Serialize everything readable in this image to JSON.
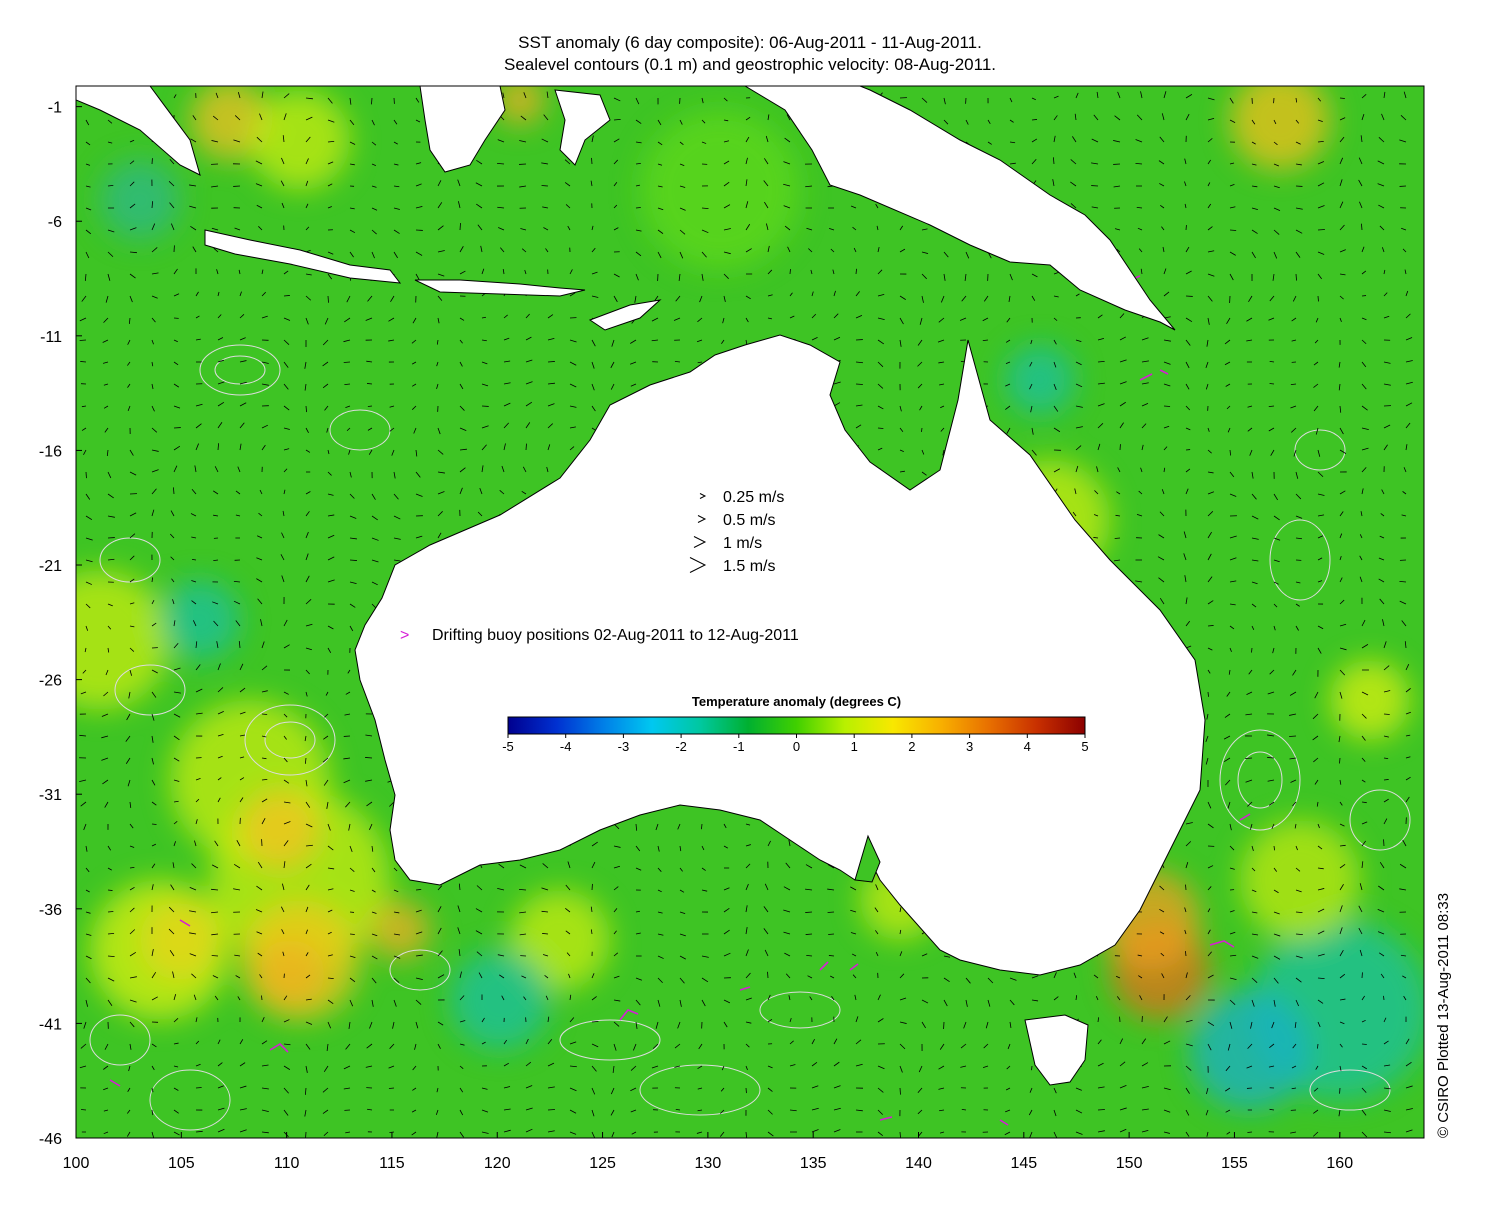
{
  "title": {
    "line1": "SST anomaly (6 day composite): 06-Aug-2011 - 11-Aug-2011.",
    "line2": "Sealevel contours (0.1 m) and geostrophic velocity: 08-Aug-2011."
  },
  "axes": {
    "x_ticks": [
      "100",
      "105",
      "110",
      "115",
      "120",
      "125",
      "130",
      "135",
      "140",
      "145",
      "150",
      "155",
      "160"
    ],
    "y_ticks": [
      "-1",
      "-6",
      "-11",
      "-16",
      "-21",
      "-26",
      "-31",
      "-36",
      "-41",
      "-46"
    ],
    "lon_range": [
      100,
      164
    ],
    "lat_range": [
      -46,
      -0.1
    ]
  },
  "velocity_legend": [
    {
      "label": "0.25 m/s",
      "speed": 0.25
    },
    {
      "label": "0.5 m/s",
      "speed": 0.5
    },
    {
      "label": "1 m/s",
      "speed": 1
    },
    {
      "label": "1.5 m/s",
      "speed": 1.5
    }
  ],
  "buoy_legend": {
    "symbol": ">",
    "label": "Drifting buoy positions 02-Aug-2011 to 12-Aug-2011",
    "color": "#d61ed6"
  },
  "colorbar": {
    "title": "Temperature anomaly (degrees C)",
    "ticks": [
      "-5",
      "-4",
      "-3",
      "-2",
      "-1",
      "0",
      "1",
      "2",
      "3",
      "4",
      "5"
    ],
    "range": [
      -5,
      5
    ],
    "colors": [
      "#00008f",
      "#0030d0",
      "#0080e8",
      "#00c8f0",
      "#00c8a0",
      "#00b030",
      "#40d000",
      "#b8f000",
      "#f8e800",
      "#f8b000",
      "#e87000",
      "#c83000",
      "#8c0000"
    ]
  },
  "credit": "© CSIRO Plotted 13-Aug-2011 08:33",
  "colors": {
    "land": "#ffffff",
    "ocean_base": "#38c020",
    "contour": "#dcdcdc",
    "arrow": "#000000"
  }
}
